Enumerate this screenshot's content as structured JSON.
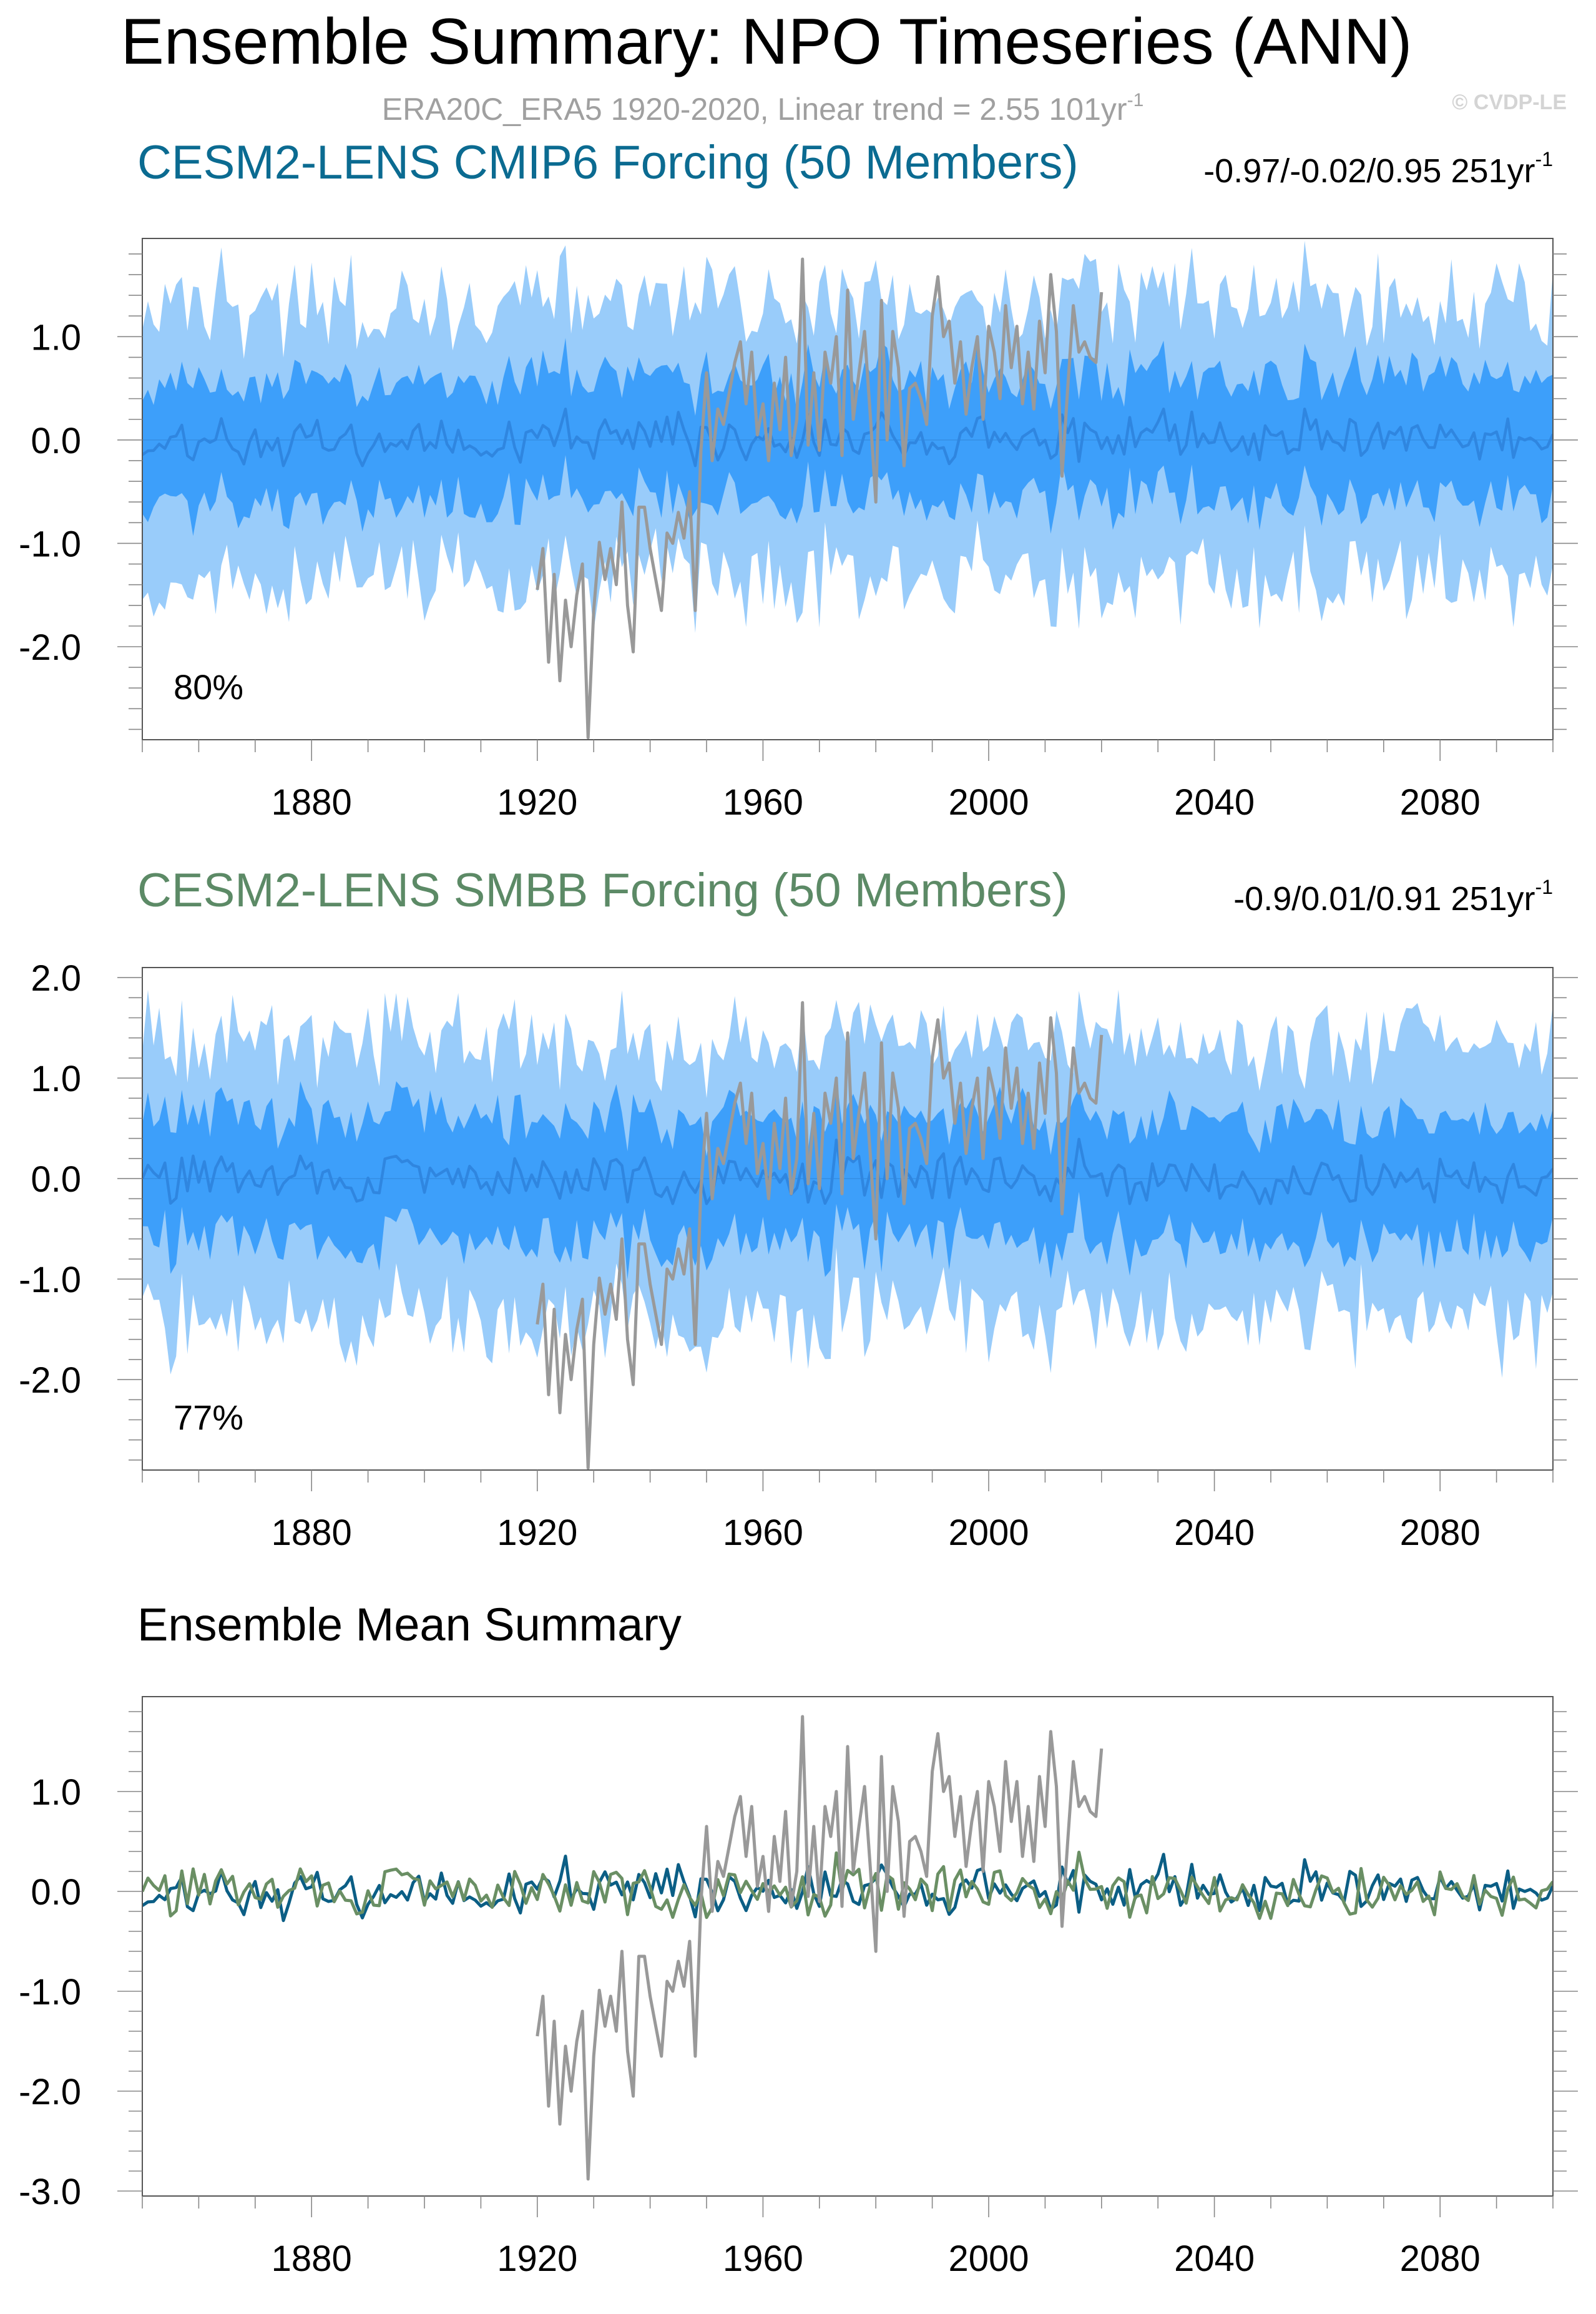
{
  "figure": {
    "title": "Ensemble Summary: NPO Timeseries (ANN)",
    "subtitle_main": "ERA20C_ERA5 1920-2020, Linear trend = 2.55 101yr",
    "subtitle_sup": "-1",
    "watermark": "© CVDP-LE"
  },
  "colors": {
    "band_outer": "#99ccfa",
    "band_inner": "#3d9ffa",
    "ens_mean_line": "#2f86e0",
    "obs_line": "#999999",
    "cmip6_title": "#0b6b91",
    "smbb_title": "#5c8a66",
    "summary_cmip6_line": "#0b5e85",
    "summary_smbb_line": "#6a8f64"
  },
  "chart_data": [
    {
      "type": "area",
      "title": "CESM2-LENS CMIP6 Forcing (50 Members)",
      "trend_main": "-0.97/-0.02/0.95 251yr",
      "trend_sup": "-1",
      "pct_label": "80%",
      "xlim": [
        1850,
        2100
      ],
      "ylim": [
        -2.9,
        1.95
      ],
      "xticks": [
        1880,
        1920,
        1960,
        2000,
        2040,
        2080
      ],
      "xtick_labels": [
        "1880",
        "1920",
        "1960",
        "2000",
        "2040",
        "2080"
      ],
      "yticks": [
        1.0,
        0.0,
        -1.0,
        -2.0
      ],
      "ytick_labels": [
        "1.0",
        "0.0",
        "-1.0",
        "-2.0"
      ],
      "series": [
        {
          "name": "ensemble 10-90% range",
          "x_range": [
            1850,
            2100
          ],
          "typical_low": -1.3,
          "typical_high": 1.3
        },
        {
          "name": "ensemble 25-75% range",
          "x_range": [
            1850,
            2100
          ],
          "typical_low": -0.55,
          "typical_high": 0.6
        },
        {
          "name": "ensemble mean",
          "x_range": [
            1850,
            2100
          ],
          "typical_range": [
            -0.25,
            0.3
          ],
          "seed": 11
        },
        {
          "name": "ERA20C_ERA5",
          "x_range": [
            1920,
            2020
          ]
        }
      ]
    },
    {
      "type": "area",
      "title": "CESM2-LENS SMBB Forcing (50 Members)",
      "trend_main": "-0.9/0.01/0.91 251yr",
      "trend_sup": "-1",
      "pct_label": "77%",
      "xlim": [
        1850,
        2100
      ],
      "ylim": [
        -2.9,
        2.1
      ],
      "xticks": [
        1880,
        1920,
        1960,
        2000,
        2040,
        2080
      ],
      "xtick_labels": [
        "1880",
        "1920",
        "1960",
        "2000",
        "2040",
        "2080"
      ],
      "yticks": [
        2.0,
        1.0,
        0.0,
        -1.0,
        -2.0
      ],
      "ytick_labels": [
        "2.0",
        "1.0",
        "0.0",
        "-1.0",
        "-2.0"
      ],
      "series": [
        {
          "name": "ensemble 10-90% range",
          "x_range": [
            1850,
            2100
          ],
          "typical_low": -1.35,
          "typical_high": 1.35
        },
        {
          "name": "ensemble 25-75% range",
          "x_range": [
            1850,
            2100
          ],
          "typical_low": -0.6,
          "typical_high": 0.6
        },
        {
          "name": "ensemble mean",
          "x_range": [
            1850,
            2100
          ],
          "typical_range": [
            -0.25,
            0.45
          ],
          "seed": 29
        },
        {
          "name": "ERA20C_ERA5",
          "x_range": [
            1920,
            2020
          ]
        }
      ]
    },
    {
      "type": "line",
      "title": "Ensemble Mean Summary",
      "xlim": [
        1850,
        2100
      ],
      "ylim": [
        -3.05,
        1.95
      ],
      "xticks": [
        1880,
        1920,
        1960,
        2000,
        2040,
        2080
      ],
      "xtick_labels": [
        "1880",
        "1920",
        "1960",
        "2000",
        "2040",
        "2080"
      ],
      "yticks": [
        1.0,
        0.0,
        -1.0,
        -2.0,
        -3.0
      ],
      "ytick_labels": [
        "1.0",
        "0.0",
        "-1.0",
        "-2.0",
        "-3.0"
      ],
      "series": [
        {
          "name": "CESM2-LENS CMIP6 ensemble mean"
        },
        {
          "name": "CESM2-LENS SMBB ensemble mean"
        },
        {
          "name": "ERA20C_ERA5"
        }
      ]
    }
  ],
  "obs_series": {
    "name": "ERA20C_ERA5",
    "x": [
      1920,
      1921,
      1922,
      1923,
      1924,
      1925,
      1926,
      1927,
      1928,
      1929,
      1930,
      1931,
      1932,
      1933,
      1934,
      1935,
      1936,
      1937,
      1938,
      1939,
      1940,
      1941,
      1942,
      1943,
      1944,
      1945,
      1946,
      1947,
      1948,
      1949,
      1950,
      1951,
      1952,
      1953,
      1954,
      1955,
      1956,
      1957,
      1958,
      1959,
      1960,
      1961,
      1962,
      1963,
      1964,
      1965,
      1966,
      1967,
      1968,
      1969,
      1970,
      1971,
      1972,
      1973,
      1974,
      1975,
      1976,
      1977,
      1978,
      1979,
      1980,
      1981,
      1982,
      1983,
      1984,
      1985,
      1986,
      1987,
      1988,
      1989,
      1990,
      1991,
      1992,
      1993,
      1994,
      1995,
      1996,
      1997,
      1998,
      1999,
      2000,
      2001,
      2002,
      2003,
      2004,
      2005,
      2006,
      2007,
      2008,
      2009,
      2010,
      2011,
      2012,
      2013,
      2014,
      2015,
      2016,
      2017,
      2018,
      2019,
      2020
    ],
    "y": [
      -1.45,
      -1.05,
      -2.15,
      -1.3,
      -2.33,
      -1.55,
      -2.0,
      -1.5,
      -1.2,
      -2.88,
      -1.65,
      -0.99,
      -1.35,
      -1.05,
      -1.4,
      -0.6,
      -1.6,
      -2.05,
      -0.65,
      -0.65,
      -1.05,
      -1.35,
      -1.65,
      -0.9,
      -1.0,
      -0.7,
      -0.95,
      -0.5,
      -1.65,
      -0.1,
      0.65,
      -0.2,
      0.3,
      0.15,
      0.45,
      0.75,
      0.95,
      0.35,
      0.85,
      0.05,
      0.35,
      -0.2,
      0.55,
      0.1,
      0.8,
      -0.15,
      0.2,
      1.75,
      -0.05,
      0.65,
      -0.1,
      0.85,
      0.55,
      1.0,
      -0.15,
      1.45,
      0.2,
      0.65,
      1.05,
      0.25,
      -0.6,
      1.35,
      0.0,
      1.05,
      0.7,
      -0.25,
      0.5,
      0.55,
      0.4,
      0.15,
      1.2,
      1.58,
      1.0,
      1.15,
      0.55,
      0.95,
      0.25,
      0.7,
      1.0,
      0.2,
      1.1,
      0.85,
      0.4,
      1.3,
      0.7,
      1.1,
      0.35,
      0.85,
      0.3,
      1.15,
      0.65,
      1.6,
      1.05,
      -0.35,
      0.5,
      1.3,
      0.85,
      0.95,
      0.8,
      0.75,
      1.43
    ]
  }
}
